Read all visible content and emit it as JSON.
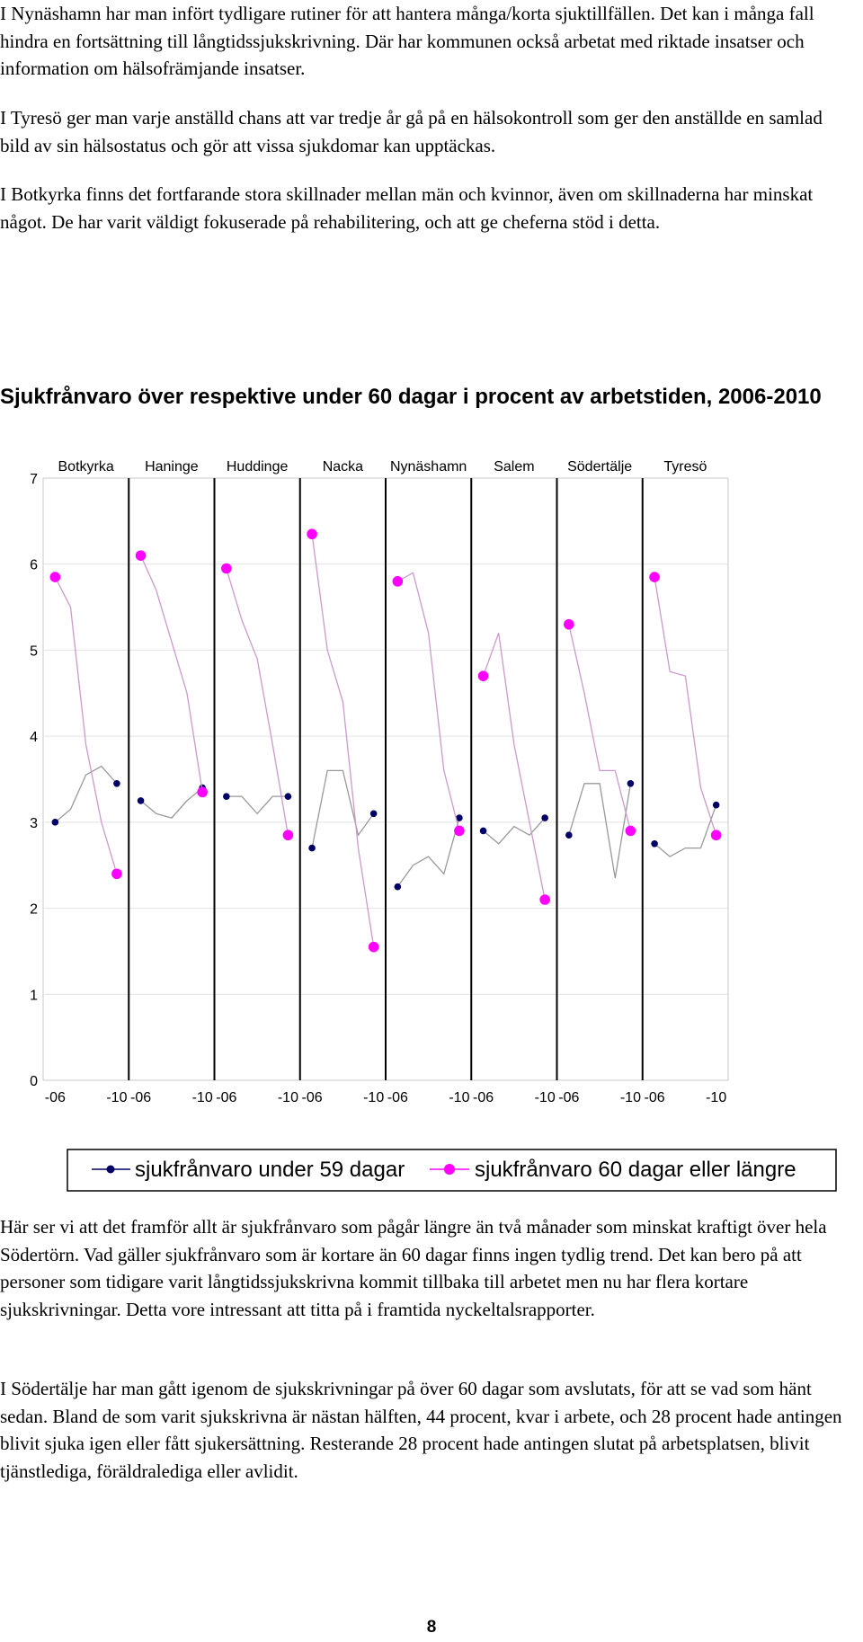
{
  "paragraphs_top": [
    "I Nynäshamn har man infört tydligare rutiner för att hantera många/korta sjuktillfällen. Det kan i många fall hindra en fortsättning till långtidssjukskrivning. Där har kommunen också arbetat med riktade insatser och information om hälsofrämjande insatser.",
    "I Tyresö ger man varje anställd chans att var tredje år gå på en hälsokontroll som ger den anställde en samlad bild av sin hälsostatus och gör att vissa sjukdomar kan upptäckas.",
    "I Botkyrka finns det fortfarande stora skillnader mellan män och kvinnor, även om skillnaderna har minskat något. De har varit väldigt fokuserade på rehabilitering, och att ge cheferna stöd i detta."
  ],
  "chart_title": "Sjukfrånvaro över respektive under 60 dagar i procent av arbetstiden, 2006-2010",
  "chart_data": {
    "type": "line",
    "title": "Sjukfrånvaro över respektive under 60 dagar i procent av arbetstiden, 2006-2010",
    "groups": [
      "Botkyrka",
      "Haninge",
      "Huddinge",
      "Nacka",
      "Nynäshamn",
      "Salem",
      "Södertälje",
      "Tyresö"
    ],
    "x_tick_labels": [
      "-06",
      "-10"
    ],
    "y_ticks": [
      "0",
      "1",
      "2",
      "3",
      "4",
      "5",
      "6",
      "7"
    ],
    "ylim": [
      0,
      7
    ],
    "series": [
      {
        "name": "sjukfrånvaro under 59 dagar",
        "color": "#000066",
        "line_color": "#999999",
        "values": [
          [
            3.0,
            3.15,
            3.55,
            3.65,
            3.45
          ],
          [
            3.25,
            3.1,
            3.05,
            3.25,
            3.4
          ],
          [
            3.3,
            3.3,
            3.1,
            3.3,
            3.3
          ],
          [
            2.7,
            3.6,
            3.6,
            2.85,
            3.1
          ],
          [
            2.25,
            2.5,
            2.6,
            2.4,
            3.05
          ],
          [
            2.9,
            2.75,
            2.95,
            2.85,
            3.05
          ],
          [
            2.85,
            3.45,
            3.45,
            2.35,
            3.45
          ],
          [
            2.75,
            2.6,
            2.7,
            2.7,
            3.2
          ]
        ]
      },
      {
        "name": "sjukfrånvaro 60 dagar eller längre",
        "color": "#ff00ff",
        "line_color": "#cc99cc",
        "values": [
          [
            5.85,
            5.5,
            3.9,
            3.0,
            2.4
          ],
          [
            6.1,
            5.7,
            5.1,
            4.5,
            3.35
          ],
          [
            5.95,
            5.35,
            4.9,
            3.9,
            2.85
          ],
          [
            6.35,
            5.0,
            4.4,
            2.7,
            1.55
          ],
          [
            5.8,
            5.9,
            5.2,
            3.6,
            2.9
          ],
          [
            4.7,
            5.2,
            3.9,
            3.0,
            2.1
          ],
          [
            5.3,
            4.5,
            3.6,
            3.6,
            2.9
          ],
          [
            5.85,
            4.75,
            4.7,
            3.4,
            2.85
          ]
        ]
      }
    ],
    "legend": [
      "sjukfrånvaro under 59 dagar",
      "sjukfrånvaro 60 dagar eller längre"
    ],
    "legend_position": "bottom"
  },
  "paragraphs_bottom": [
    "Här ser vi att det framför allt är sjukfrånvaro som pågår längre än två månader som minskat kraftigt över hela Södertörn. Vad gäller sjukfrånvaro som är kortare än 60 dagar finns ingen tydlig trend. Det kan bero på att personer som tidigare varit långtidssjukskrivna kommit tillbaka till arbetet men nu har flera kortare sjukskrivningar. Detta vore intressant att titta på i framtida nyckeltalsrapporter.",
    "I Södertälje har man gått igenom de sjukskrivningar på över 60 dagar som avslutats, för att se vad som hänt sedan. Bland de som varit sjukskrivna är nästan hälften, 44 procent, kvar i arbete, och 28 procent hade antingen blivit sjuka igen eller fått sjukersättning. Resterande 28 procent hade antingen slutat på arbetsplatsen, blivit tjänstlediga, föräldralediga eller avlidit."
  ],
  "page_number": "8"
}
